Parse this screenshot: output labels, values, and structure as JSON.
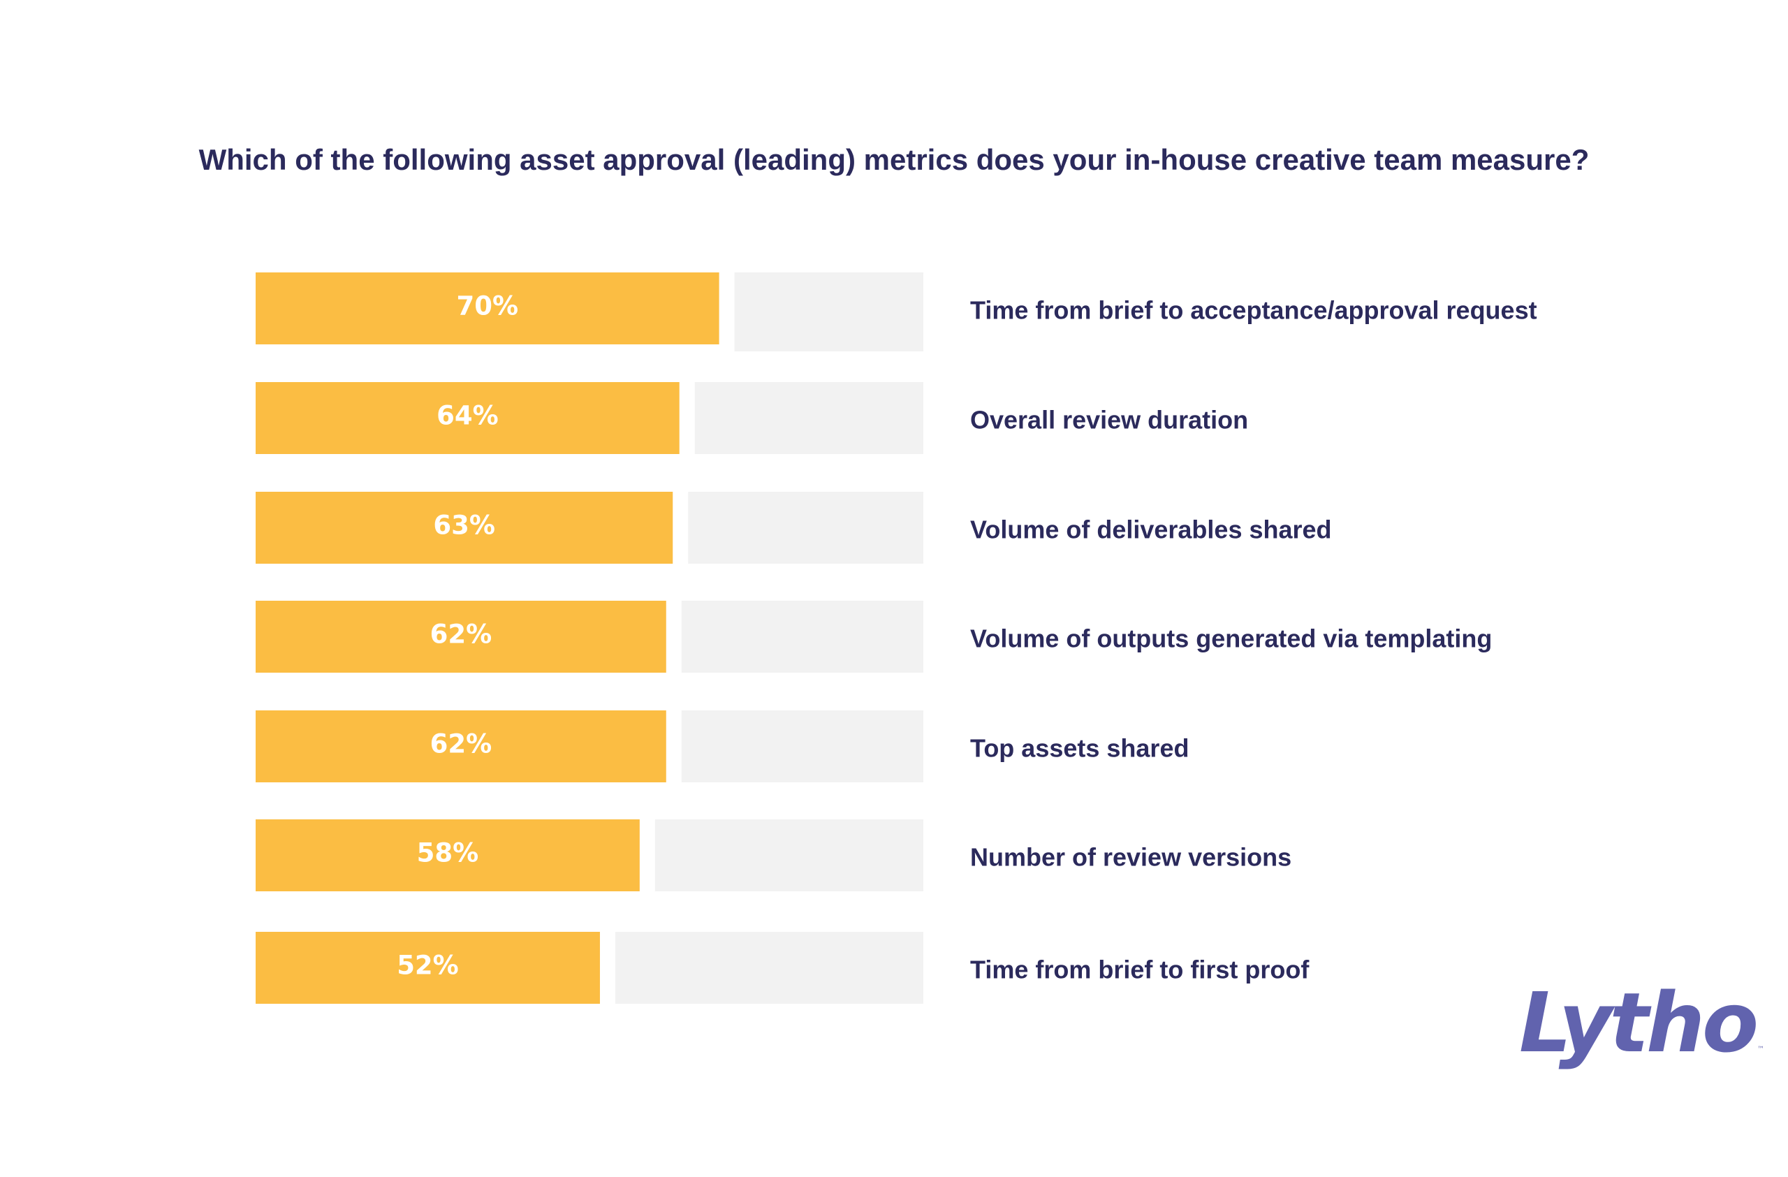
{
  "chart_data": {
    "type": "bar",
    "orientation": "horizontal",
    "title": "Which of the following asset approval (leading) metrics does your in-house creative team measure?",
    "categories": [
      "Time from brief to acceptance/approval request",
      "Overall review duration",
      "Volume of deliverables shared",
      "Volume of outputs generated via templating",
      "Top assets shared",
      "Number of review versions",
      "Time from brief to first proof"
    ],
    "values": [
      70,
      64,
      63,
      62,
      62,
      58,
      52
    ],
    "value_labels": [
      "70%",
      "64%",
      "63%",
      "62%",
      "62%",
      "58%",
      "52%"
    ],
    "xlim": [
      0,
      100
    ],
    "unit": "%",
    "grid": false,
    "legend": "none",
    "colors": {
      "bar": "#fbbd43",
      "remainder": "#f2f2f2",
      "value_text": "#ffffff",
      "label_text": "#2b2a5c"
    }
  },
  "logo": {
    "text": "Lytho",
    "tm": "™",
    "color": "#6163ae"
  }
}
